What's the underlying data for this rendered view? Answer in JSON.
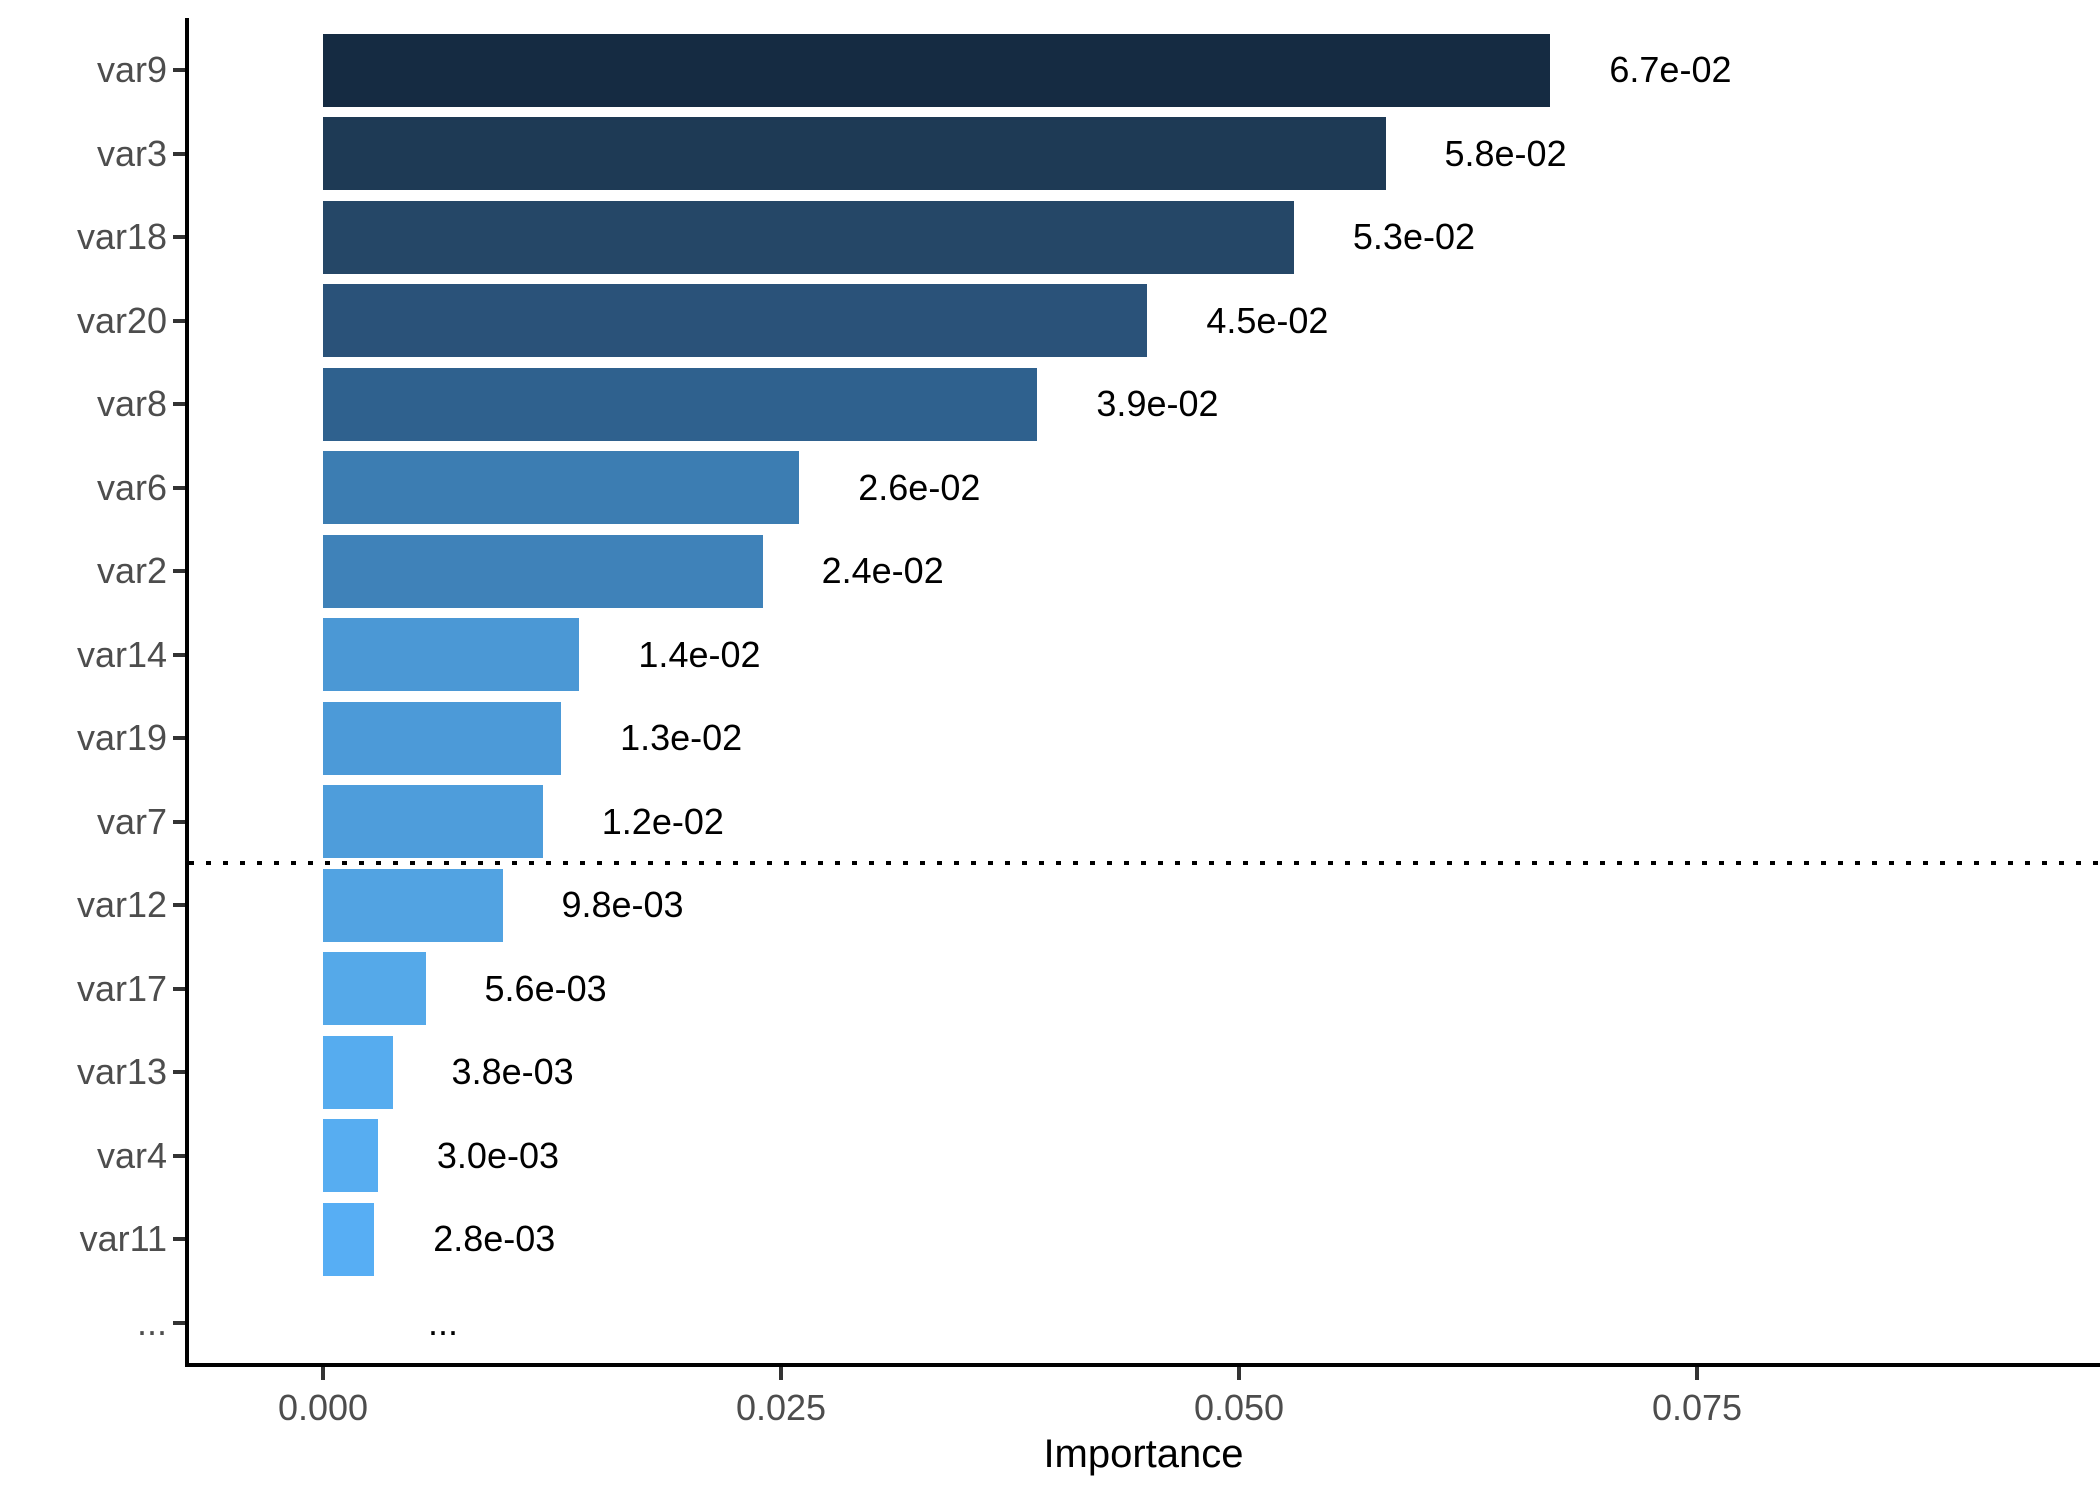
{
  "chart_data": {
    "type": "bar",
    "orientation": "horizontal",
    "title": "",
    "xlabel": "Importance",
    "ylabel": "",
    "xlim": [
      0,
      0.097
    ],
    "grid": "off",
    "legend": "none",
    "background_color": "#FFFFFF",
    "axis_line_color": "#000000",
    "axis_text_color": "#4D4D4D",
    "value_label_color": "#000000",
    "x_ticks": [
      0.0,
      0.025,
      0.05,
      0.075
    ],
    "x_tick_labels": [
      "0.000",
      "0.025",
      "0.050",
      "0.075"
    ],
    "categories": [
      "var9",
      "var3",
      "var18",
      "var20",
      "var8",
      "var6",
      "var2",
      "var14",
      "var19",
      "var7",
      "var12",
      "var17",
      "var13",
      "var4",
      "var11",
      "..."
    ],
    "values": [
      0.067,
      0.058,
      0.053,
      0.045,
      0.039,
      0.026,
      0.024,
      0.014,
      0.013,
      0.012,
      0.0098,
      0.0056,
      0.0038,
      0.003,
      0.0028,
      null
    ],
    "bar_labels": [
      "6.7e-02",
      "5.8e-02",
      "5.3e-02",
      "4.5e-02",
      "3.9e-02",
      "2.6e-02",
      "2.4e-02",
      "1.4e-02",
      "1.3e-02",
      "1.2e-02",
      "9.8e-03",
      "5.6e-03",
      "3.8e-03",
      "3.0e-03",
      "2.8e-03",
      "..."
    ],
    "bar_colors": [
      "#152B42",
      "#1E3A55",
      "#254767",
      "#2A5279",
      "#2F618E",
      "#3C7DB2",
      "#3F82B9",
      "#4B98D5",
      "#4C9AD8",
      "#4E9DDB",
      "#52A3E2",
      "#55A9E9",
      "#56ACEF",
      "#57ADF1",
      "#57AEF4",
      null
    ],
    "color_gradient": {
      "low_value_color": "#56B1F7",
      "high_value_color": "#132B43"
    },
    "cutoff_line": {
      "style": "dotted",
      "color": "#000000",
      "between_categories": [
        "var7",
        "var12"
      ]
    }
  }
}
